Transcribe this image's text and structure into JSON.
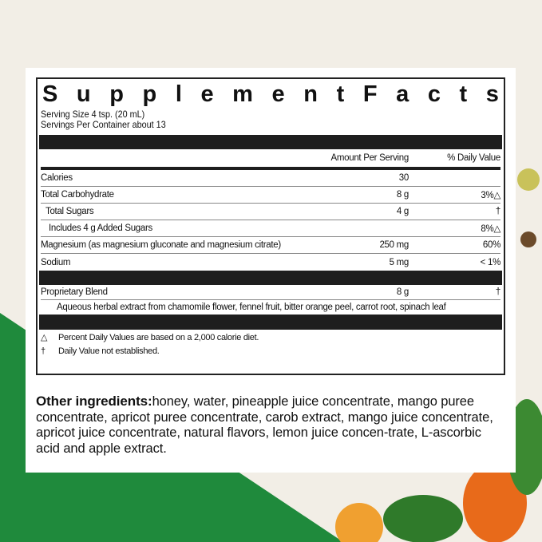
{
  "title": "Supplement Facts",
  "serving_size": "Serving Size 4 tsp. (20 mL)",
  "servings_per_container": "Servings Per Container about 13",
  "header": {
    "amount": "Amount Per Serving",
    "dv": "% Daily Value"
  },
  "rows": [
    {
      "name": "Calories",
      "amount": "30",
      "dv": ""
    },
    {
      "name": "Total Carbohydrate",
      "amount": "8 g",
      "dv": "3%△"
    },
    {
      "name": "Total Sugars",
      "amount": "4 g",
      "dv": "†"
    },
    {
      "name": "Includes 4 g Added Sugars",
      "amount": "",
      "dv": "8%△"
    },
    {
      "name": "Magnesium (as magnesium gluconate and magnesium citrate)",
      "amount": "250 mg",
      "dv": "60%"
    },
    {
      "name": "Sodium",
      "amount": "5 mg",
      "dv": "< 1%"
    }
  ],
  "blend": {
    "name": "Proprietary Blend",
    "amount": "8 g",
    "dv": "†",
    "description": "Aqueous herbal extract from chamomile flower, fennel fruit, bitter orange peel, carrot root, spinach leaf"
  },
  "footnotes": [
    {
      "symbol": "△",
      "text": "Percent Daily Values are based on a 2,000 calorie diet."
    },
    {
      "symbol": "†",
      "text": "Daily Value not established."
    }
  ],
  "other_ingredients": {
    "label": "Other ingredients:",
    "text": "honey, water, pineapple juice concentrate, mango puree concentrate, apricot puree concentrate, carob extract, mango juice concentrate, apricot juice concentrate, natural flavors, lemon juice concen-trate, L-ascorbic acid and apple extract."
  },
  "colors": {
    "background": "#f2eee6",
    "green": "#1f8a3c"
  }
}
